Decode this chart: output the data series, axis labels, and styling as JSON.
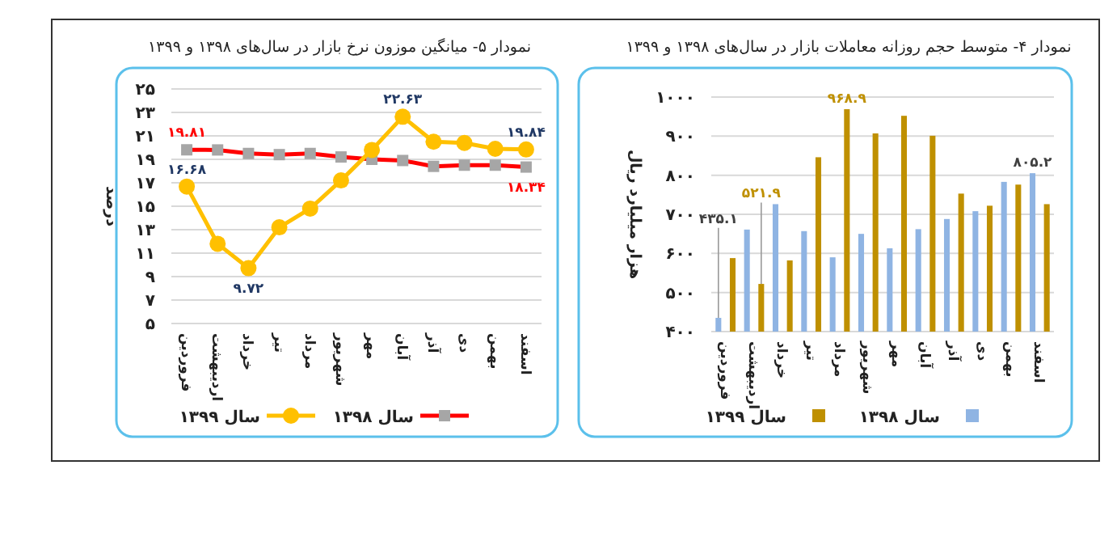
{
  "chart_data": [
    {
      "type": "line",
      "title": "نمودار ۵- میانگین موزون نرخ بازار در سال‌های ۱۳۹۸ و ۱۳۹۹",
      "ylabel": "درصد",
      "categories": [
        "فروردین",
        "اردیبهشت",
        "خرداد",
        "تیر",
        "مرداد",
        "شهریور",
        "مهر",
        "آبان",
        "آذر",
        "دی",
        "بهمن",
        "اسفند"
      ],
      "series": [
        {
          "name": "سال ۱۳۹۸",
          "color": "#ff0000",
          "marker": "square",
          "values": [
            19.81,
            19.8,
            19.5,
            19.4,
            19.5,
            19.2,
            19.0,
            18.9,
            18.4,
            18.5,
            18.5,
            18.34
          ],
          "value_labels": [
            "۱۹.۸۱",
            null,
            null,
            null,
            null,
            null,
            null,
            null,
            null,
            null,
            null,
            "۱۸.۳۴"
          ]
        },
        {
          "name": "سال ۱۳۹۹",
          "color": "#ffc000",
          "marker": "circle",
          "values": [
            16.68,
            11.8,
            9.72,
            13.2,
            14.8,
            17.2,
            19.8,
            22.63,
            20.5,
            20.4,
            19.9,
            19.84
          ],
          "value_labels": [
            "۱۶.۶۸",
            null,
            "۹.۷۲",
            null,
            null,
            null,
            null,
            "۲۲.۶۳",
            null,
            null,
            null,
            "۱۹.۸۴"
          ]
        }
      ],
      "ylim": [
        5,
        25
      ],
      "yticks": [
        {
          "value": 5,
          "label": "۵"
        },
        {
          "value": 7,
          "label": "۷"
        },
        {
          "value": 9,
          "label": "۹"
        },
        {
          "value": 11,
          "label": "۱۱"
        },
        {
          "value": 13,
          "label": "۱۳"
        },
        {
          "value": 15,
          "label": "۱۵"
        },
        {
          "value": 17,
          "label": "۱۷"
        },
        {
          "value": 19,
          "label": "۱۹"
        },
        {
          "value": 21,
          "label": "۲۱"
        },
        {
          "value": 23,
          "label": "۲۳"
        },
        {
          "value": 25,
          "label": "۲۵"
        }
      ],
      "grid": "y",
      "legend": "bottom"
    },
    {
      "type": "bar",
      "title": "نمودار ۴- متوسط حجم روزانه معاملات بازار در سال‌های ۱۳۹۸ و ۱۳۹۹",
      "ylabel": "هزار میلیارد ریال",
      "categories": [
        "فروردین",
        "اردیبهشت",
        "خرداد",
        "تیر",
        "مرداد",
        "شهریور",
        "مهر",
        "آبان",
        "آذر",
        "دی",
        "بهمن",
        "اسفند"
      ],
      "series": [
        {
          "name": "سال ۱۳۹۸",
          "color": "#8fb4e3",
          "values": [
            435.1,
            661,
            726,
            657,
            590,
            650,
            613,
            662,
            688,
            708,
            783,
            805.2
          ],
          "value_labels": [
            "۴۳۵.۱",
            null,
            null,
            null,
            null,
            null,
            null,
            null,
            null,
            null,
            null,
            "۸۰۵.۲"
          ]
        },
        {
          "name": "سال ۱۳۹۹",
          "color": "#bf9000",
          "values": [
            588,
            521.9,
            582,
            846,
            968.9,
            907,
            952,
            901,
            753,
            722,
            776,
            726
          ],
          "value_labels": [
            null,
            "۵۲۱.۹",
            null,
            null,
            "۹۶۸.۹",
            null,
            null,
            null,
            null,
            null,
            null,
            null
          ]
        }
      ],
      "ylim": [
        400,
        1000
      ],
      "yticks": [
        {
          "value": 400,
          "label": "۴۰۰"
        },
        {
          "value": 500,
          "label": "۵۰۰"
        },
        {
          "value": 600,
          "label": "۶۰۰"
        },
        {
          "value": 700,
          "label": "۷۰۰"
        },
        {
          "value": 800,
          "label": "۸۰۰"
        },
        {
          "value": 900,
          "label": "۹۰۰"
        },
        {
          "value": 1000,
          "label": "۱۰۰۰"
        }
      ],
      "grid": "y",
      "legend": "bottom"
    }
  ]
}
